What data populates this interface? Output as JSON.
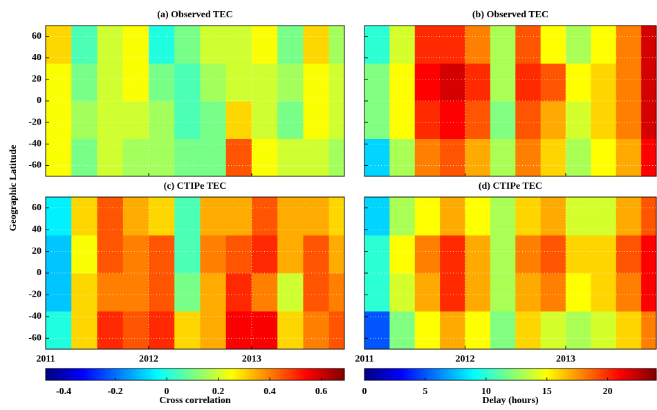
{
  "ylabel": "Geographic Latitude",
  "colormap": "jet",
  "chart_data": [
    {
      "type": "heatmap",
      "title": "(a) Observed TEC",
      "grid": true,
      "xlim": [
        2011,
        2013.9
      ],
      "xticks": [
        2011,
        2012,
        2013
      ],
      "ylim": [
        -70,
        70
      ],
      "yticks": [
        -60,
        -40,
        -20,
        0,
        20,
        40,
        60
      ],
      "x_bins": [
        2011,
        2011.25,
        2011.5,
        2011.75,
        2012,
        2012.25,
        2012.5,
        2012.75,
        2013,
        2013.25,
        2013.5,
        2013.75,
        2013.9
      ],
      "y_bins": [
        -70,
        -35,
        0,
        35,
        70
      ],
      "z": [
        [
          0.25,
          0.1,
          0.2,
          0.15,
          0.15,
          0.1,
          0.1,
          0.45,
          0.25,
          0.2,
          0.2,
          0.15
        ],
        [
          0.25,
          0.15,
          0.2,
          0.2,
          0.15,
          0.05,
          0.1,
          0.3,
          0.2,
          0.1,
          0.25,
          0.2
        ],
        [
          0.25,
          0.1,
          0.2,
          0.25,
          0.1,
          0.05,
          0.15,
          0.2,
          0.2,
          0.15,
          0.25,
          0.2
        ],
        [
          0.3,
          0.05,
          0.2,
          0.25,
          0.0,
          0.1,
          0.2,
          0.2,
          0.25,
          0.1,
          0.3,
          0.15
        ]
      ]
    },
    {
      "type": "heatmap",
      "title": "(b) Observed TEC",
      "grid": true,
      "xlim": [
        2011,
        2013.9
      ],
      "xticks": [
        2011,
        2012,
        2013
      ],
      "ylim": [
        -70,
        70
      ],
      "yticks": [
        -60,
        -40,
        -20,
        0,
        20,
        40,
        60
      ],
      "x_bins": [
        2011,
        2011.25,
        2011.5,
        2011.75,
        2012,
        2012.25,
        2012.5,
        2012.75,
        2013,
        2013.25,
        2013.5,
        2013.75,
        2013.9
      ],
      "y_bins": [
        -70,
        -35,
        0,
        35,
        70
      ],
      "z": [
        [
          8,
          13,
          18,
          19,
          17,
          13,
          18,
          16,
          13,
          15,
          17,
          21
        ],
        [
          12,
          15,
          20,
          21,
          19,
          12,
          19,
          17,
          14,
          16,
          18,
          22
        ],
        [
          12,
          15,
          21,
          22,
          20,
          13,
          20,
          19,
          15,
          16,
          18,
          22
        ],
        [
          10,
          14,
          20,
          20,
          18,
          13,
          19,
          15,
          13,
          15,
          18,
          22
        ]
      ]
    },
    {
      "type": "heatmap",
      "title": "(c) CTIPe TEC",
      "grid": true,
      "xlim": [
        2011,
        2013.9
      ],
      "xticks": [
        2011,
        2012,
        2013
      ],
      "ylim": [
        -70,
        70
      ],
      "yticks": [
        -60,
        -40,
        -20,
        0,
        20,
        40,
        60
      ],
      "x_bins": [
        2011,
        2011.25,
        2011.5,
        2011.75,
        2012,
        2012.25,
        2012.5,
        2012.75,
        2013,
        2013.25,
        2013.5,
        2013.75,
        2013.9
      ],
      "y_bins": [
        -70,
        -35,
        0,
        35,
        70
      ],
      "z": [
        [
          0.0,
          0.3,
          0.5,
          0.45,
          0.5,
          0.3,
          0.35,
          0.55,
          0.55,
          0.3,
          0.4,
          0.45
        ],
        [
          -0.1,
          0.3,
          0.4,
          0.4,
          0.45,
          0.1,
          0.35,
          0.5,
          0.4,
          0.2,
          0.45,
          0.4
        ],
        [
          -0.1,
          0.25,
          0.45,
          0.4,
          0.45,
          0.05,
          0.4,
          0.45,
          0.5,
          0.35,
          0.45,
          0.35
        ],
        [
          -0.05,
          0.3,
          0.45,
          0.35,
          0.3,
          0.05,
          0.35,
          0.35,
          0.45,
          0.35,
          0.35,
          0.3
        ]
      ]
    },
    {
      "type": "heatmap",
      "title": "(d) CTIPe TEC",
      "grid": true,
      "xlim": [
        2011,
        2013.9
      ],
      "xticks": [
        2011,
        2012,
        2013
      ],
      "ylim": [
        -70,
        70
      ],
      "yticks": [
        -60,
        -40,
        -20,
        0,
        20,
        40,
        60
      ],
      "x_bins": [
        2011,
        2011.25,
        2011.5,
        2011.75,
        2012,
        2012.25,
        2012.5,
        2012.75,
        2013,
        2013.25,
        2013.5,
        2013.75,
        2013.9
      ],
      "y_bins": [
        -70,
        -35,
        0,
        35,
        70
      ],
      "z": [
        [
          5,
          12,
          15,
          17,
          15,
          12,
          16,
          14,
          13,
          14,
          16,
          18
        ],
        [
          10,
          14,
          17,
          20,
          17,
          13,
          17,
          18,
          15,
          16,
          18,
          21
        ],
        [
          10,
          15,
          18,
          20,
          17,
          13,
          18,
          19,
          16,
          16,
          19,
          21
        ],
        [
          8,
          13,
          15,
          17,
          15,
          13,
          16,
          17,
          14,
          14,
          17,
          19
        ]
      ]
    }
  ],
  "colorbars": [
    {
      "label": "Cross correlation",
      "clim": [
        -0.47,
        0.69
      ],
      "ticks": [
        -0.4,
        -0.2,
        0,
        0.2,
        0.4,
        0.6
      ]
    },
    {
      "label": "Delay (hours)",
      "clim": [
        0,
        24
      ],
      "ticks": [
        0,
        5,
        10,
        15,
        20
      ]
    }
  ]
}
